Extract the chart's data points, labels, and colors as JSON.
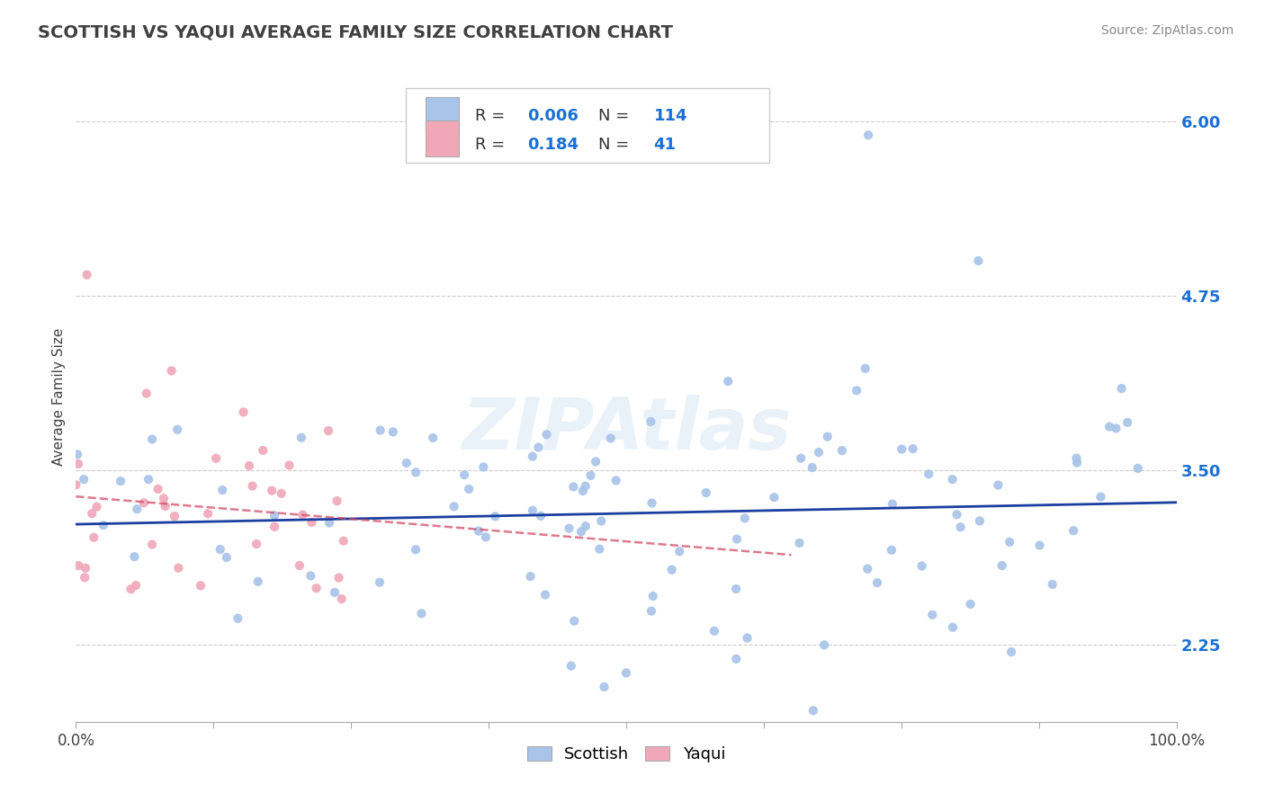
{
  "title": "SCOTTISH VS YAQUI AVERAGE FAMILY SIZE CORRELATION CHART",
  "source": "Source: ZipAtlas.com",
  "ylabel": "Average Family Size",
  "xlim": [
    0.0,
    1.0
  ],
  "ylim": [
    1.7,
    6.35
  ],
  "yticks": [
    2.25,
    3.5,
    4.75,
    6.0
  ],
  "scottish_color": "#a8c4e8",
  "yaqui_color": "#f0a8b8",
  "scottish_line_color": "#1a3fa0",
  "yaqui_line_color": "#d04060",
  "r_scottish": 0.006,
  "n_scottish": 114,
  "r_yaqui": 0.184,
  "n_yaqui": 41,
  "watermark": "ZIPAtlas",
  "legend_color": "#1a6fd4",
  "background_color": "#ffffff",
  "grid_color": "#cccccc",
  "title_color": "#404040",
  "source_color": "#888888",
  "axis_label_color": "#404040",
  "tick_label_color": "#1a6fd4"
}
